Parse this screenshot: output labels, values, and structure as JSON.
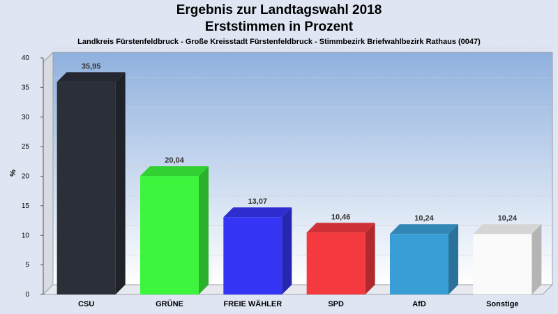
{
  "header": {
    "title_line1": "Ergebnis zur Landtagswahl 2018",
    "title_line2": "Erststimmen in Prozent",
    "subtitle": "Landkreis Fürstenfeldbruck - Große Kreisstadt Fürstenfeldbruck - Stimmbezirk Briefwahlbezirk Rathaus (0047)"
  },
  "chart_data": {
    "type": "bar",
    "title": "Ergebnis zur Landtagswahl 2018",
    "subtitle": "Erststimmen in Prozent",
    "categories": [
      "CSU",
      "GRÜNE",
      "FREIE WÄHLER",
      "SPD",
      "AfD",
      "Sonstige"
    ],
    "values": [
      35.95,
      20.04,
      13.07,
      10.46,
      10.24,
      10.24
    ],
    "value_labels": [
      "35,95",
      "20,04",
      "13,07",
      "10,46",
      "10,24",
      "10,24"
    ],
    "colors": [
      "#2b2f38",
      "#3cf53c",
      "#3535f5",
      "#f53a3f",
      "#3a9ed6",
      "#fafafa"
    ],
    "ylabel": "%",
    "xlabel": "",
    "ylim": [
      0,
      40
    ],
    "yticks": [
      0,
      5,
      10,
      15,
      20,
      25,
      30,
      35,
      40
    ],
    "grid": true,
    "legend": "none"
  }
}
